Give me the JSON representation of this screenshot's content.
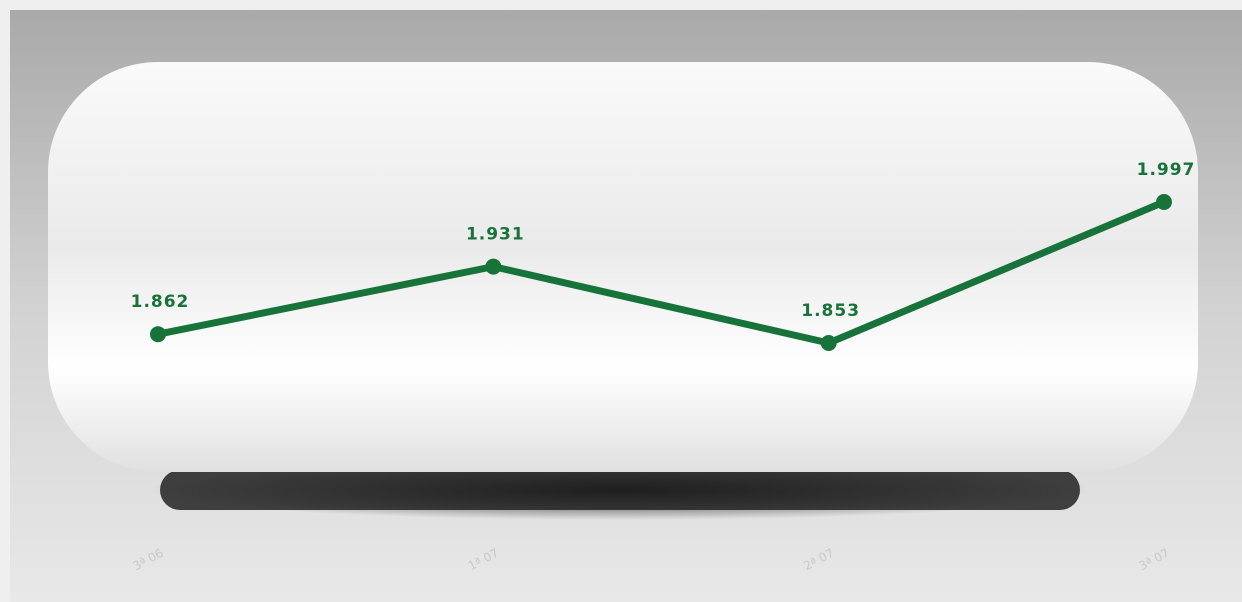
{
  "chart_data": {
    "type": "line",
    "categories": [
      "3ª 06",
      "1ª 07",
      "2ª 07",
      "3ª 07"
    ],
    "series": [
      {
        "color": "#17733a",
        "values": [
          1.862,
          1.931,
          1.853,
          1.997
        ],
        "value_labels": [
          "1.862",
          "1.931",
          "1.853",
          "1.997"
        ]
      }
    ]
  }
}
